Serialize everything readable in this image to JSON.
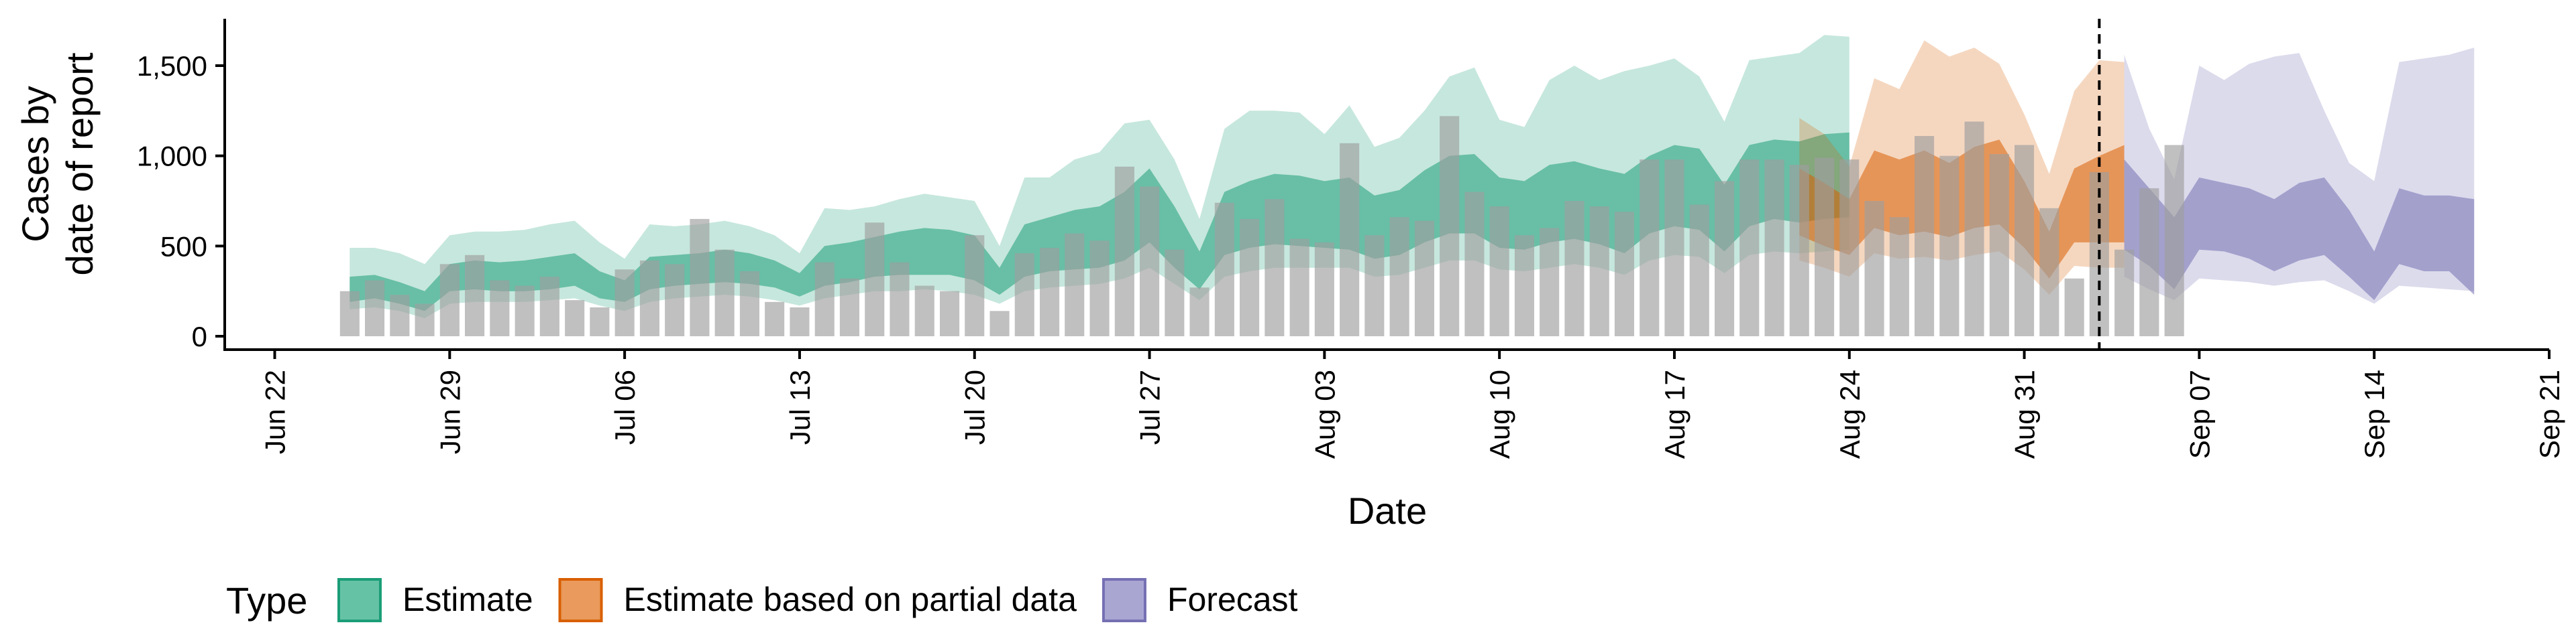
{
  "chart_data": {
    "type": "bar+area",
    "xlabel": "Date",
    "ylabel_lines": [
      "Cases by",
      "date of report"
    ],
    "ylim": [
      0,
      1750
    ],
    "y_ticks": [
      0,
      500,
      1000,
      1500
    ],
    "y_tick_labels": [
      "0",
      "500",
      "1,000",
      "1,500"
    ],
    "x_ticks": [
      "2020-06-22",
      "2020-06-29",
      "2020-07-06",
      "2020-07-13",
      "2020-07-20",
      "2020-07-27",
      "2020-08-03",
      "2020-08-10",
      "2020-08-17",
      "2020-08-24",
      "2020-08-31",
      "2020-09-07",
      "2020-09-14",
      "2020-09-21"
    ],
    "x_tick_labels": [
      "Jun 22",
      "Jun 29",
      "Jul 06",
      "Jul 13",
      "Jul 20",
      "Jul 27",
      "Aug 03",
      "Aug 10",
      "Aug 17",
      "Aug 24",
      "Aug 31",
      "Sep 07",
      "Sep 14",
      "Sep 21"
    ],
    "x_range": [
      "2020-06-20",
      "2020-09-21"
    ],
    "vline_date": "2020-09-03",
    "grid": false,
    "legend": {
      "title": "Type",
      "position": "bottom",
      "items": [
        {
          "label": "Estimate",
          "fill": "#66c2a5",
          "stroke": "#1b9e77"
        },
        {
          "label": "Estimate based on partial data",
          "fill": "#e99a5c",
          "stroke": "#d95f02"
        },
        {
          "label": "Forecast",
          "fill": "#a9a6d2",
          "stroke": "#7570b3"
        }
      ]
    },
    "colors": {
      "bars": "#9e9e9e",
      "estimate": "#1b9e77",
      "partial": "#d95f02",
      "forecast": "#7570b3",
      "vline": "#000000"
    },
    "bars": {
      "start_date": "2020-06-25",
      "values": [
        250,
        310,
        230,
        180,
        400,
        450,
        310,
        280,
        330,
        200,
        160,
        370,
        420,
        400,
        650,
        480,
        360,
        190,
        160,
        410,
        320,
        630,
        410,
        280,
        250,
        560,
        140,
        460,
        490,
        570,
        530,
        940,
        830,
        480,
        270,
        740,
        650,
        760,
        540,
        520,
        1070,
        560,
        660,
        640,
        1220,
        800,
        720,
        560,
        600,
        750,
        720,
        690,
        980,
        980,
        730,
        860,
        980,
        980,
        950,
        990,
        980,
        750,
        660,
        1110,
        1000,
        1190,
        1010,
        1060,
        710,
        320,
        910,
        480,
        820,
        1060
      ]
    },
    "series": [
      {
        "name": "Estimate",
        "start_date": "2020-06-25",
        "median": [
          280,
          300,
          260,
          210,
          340,
          360,
          350,
          360,
          370,
          390,
          300,
          250,
          350,
          390,
          400,
          430,
          400,
          370,
          300,
          380,
          400,
          440,
          460,
          460,
          460,
          420,
          300,
          450,
          490,
          500,
          520,
          580,
          700,
          520,
          340,
          600,
          650,
          680,
          670,
          680,
          680,
          600,
          620,
          720,
          780,
          780,
          650,
          650,
          700,
          720,
          680,
          620,
          780,
          820,
          800,
          620,
          830,
          870,
          840,
          860,
          880
        ],
        "low90": [
          150,
          160,
          140,
          100,
          180,
          190,
          190,
          190,
          200,
          210,
          170,
          140,
          190,
          210,
          220,
          230,
          220,
          200,
          170,
          210,
          230,
          250,
          250,
          260,
          250,
          230,
          180,
          250,
          270,
          280,
          290,
          320,
          380,
          290,
          200,
          330,
          360,
          380,
          380,
          380,
          380,
          330,
          340,
          380,
          420,
          420,
          370,
          360,
          380,
          400,
          380,
          340,
          420,
          450,
          440,
          350,
          450,
          470,
          460,
          470,
          480
        ],
        "high90": [
          490,
          490,
          460,
          400,
          560,
          580,
          580,
          590,
          620,
          640,
          520,
          430,
          620,
          610,
          620,
          640,
          610,
          560,
          460,
          710,
          700,
          720,
          760,
          790,
          770,
          750,
          500,
          880,
          880,
          980,
          1020,
          1180,
          1200,
          980,
          650,
          1150,
          1250,
          1250,
          1240,
          1120,
          1280,
          1050,
          1100,
          1250,
          1440,
          1490,
          1200,
          1160,
          1420,
          1500,
          1420,
          1470,
          1500,
          1540,
          1440,
          1190,
          1530,
          1550,
          1570,
          1670,
          1660
        ],
        "low50": [
          190,
          210,
          180,
          140,
          250,
          260,
          250,
          250,
          260,
          280,
          210,
          190,
          260,
          280,
          290,
          300,
          290,
          270,
          220,
          280,
          300,
          330,
          340,
          340,
          340,
          310,
          230,
          330,
          360,
          370,
          380,
          420,
          520,
          380,
          260,
          450,
          490,
          510,
          500,
          490,
          480,
          430,
          450,
          520,
          570,
          570,
          490,
          480,
          520,
          540,
          510,
          460,
          570,
          610,
          590,
          470,
          610,
          650,
          630,
          650,
          660
        ],
        "high50": [
          330,
          340,
          300,
          250,
          400,
          420,
          410,
          420,
          440,
          460,
          360,
          310,
          440,
          450,
          460,
          480,
          460,
          420,
          350,
          500,
          520,
          550,
          580,
          600,
          590,
          560,
          380,
          620,
          660,
          700,
          720,
          800,
          930,
          720,
          470,
          800,
          860,
          900,
          890,
          860,
          880,
          780,
          810,
          920,
          1000,
          1010,
          880,
          860,
          950,
          970,
          930,
          900,
          1000,
          1060,
          1040,
          840,
          1060,
          1090,
          1080,
          1120,
          1130
        ]
      },
      {
        "name": "Estimate based on partial data",
        "start_date": "2020-08-22",
        "median": [
          760,
          680,
          600,
          820,
          750,
          780,
          730,
          800,
          820,
          640,
          420,
          700,
          680,
          680
        ],
        "low90": [
          420,
          380,
          330,
          460,
          430,
          440,
          420,
          450,
          470,
          370,
          230,
          390,
          380,
          380
        ],
        "high90": [
          1210,
          1120,
          940,
          1430,
          1370,
          1640,
          1550,
          1600,
          1510,
          1230,
          900,
          1360,
          1530,
          1520
        ],
        "low50": [
          560,
          500,
          450,
          600,
          560,
          580,
          550,
          600,
          620,
          490,
          320,
          520,
          520,
          520
        ],
        "high50": [
          930,
          850,
          760,
          1030,
          980,
          1030,
          960,
          1050,
          1090,
          860,
          580,
          930,
          1000,
          1060
        ]
      },
      {
        "name": "Forecast",
        "start_date": "2020-09-04",
        "median": [
          660,
          560,
          400,
          670,
          640,
          620,
          560,
          620,
          640,
          520,
          380,
          600,
          570,
          580,
          560
        ],
        "low90": [
          330,
          260,
          200,
          320,
          310,
          300,
          280,
          300,
          310,
          250,
          180,
          280,
          270,
          260,
          250
        ],
        "high90": [
          1560,
          1150,
          870,
          1500,
          1420,
          1510,
          1550,
          1570,
          1250,
          960,
          860,
          1520,
          1540,
          1560,
          1600
        ],
        "low50": [
          480,
          390,
          260,
          480,
          470,
          430,
          360,
          420,
          450,
          330,
          200,
          400,
          360,
          360,
          230
        ],
        "high50": [
          980,
          820,
          660,
          880,
          850,
          820,
          760,
          850,
          880,
          700,
          470,
          820,
          780,
          780,
          760
        ]
      }
    ]
  }
}
